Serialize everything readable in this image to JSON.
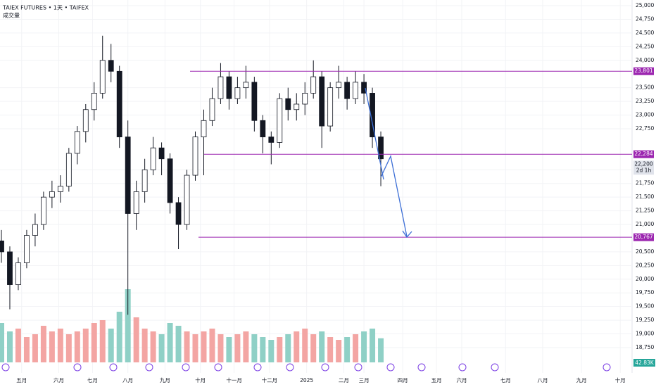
{
  "chart_data": {
    "type": "candlestick",
    "title": "TAIEX FUTURES • 1天 • TAIFEX",
    "subtitle": "成交量",
    "x": [
      0,
      5,
      10,
      15,
      20,
      25,
      30,
      35,
      40,
      45,
      50,
      55,
      60,
      65,
      70,
      75,
      80,
      85,
      90,
      95,
      100,
      105,
      110,
      115,
      120,
      125,
      130,
      135,
      140,
      145,
      150,
      155,
      160,
      165,
      170,
      175,
      180,
      185,
      190,
      195,
      200,
      205,
      210,
      215,
      220,
      225
    ],
    "open": [
      20700,
      20500,
      19900,
      20300,
      20800,
      21000,
      21500,
      21600,
      21700,
      22300,
      22700,
      23100,
      23400,
      24000,
      23800,
      22600,
      21200,
      21600,
      22000,
      22400,
      22200,
      21400,
      21000,
      21900,
      22600,
      22900,
      23300,
      23700,
      23300,
      23500,
      23600,
      22900,
      22600,
      22500,
      23300,
      23100,
      23200,
      23400,
      23700,
      22800,
      23500,
      23600,
      23300,
      23600,
      23400,
      22600
    ],
    "high": [
      20900,
      20600,
      20400,
      20900,
      21200,
      21600,
      21800,
      21900,
      22400,
      22800,
      23200,
      23600,
      24450,
      24300,
      23900,
      22900,
      21800,
      22200,
      22600,
      22500,
      22300,
      21500,
      22000,
      22700,
      23100,
      23500,
      23950,
      23800,
      23700,
      23900,
      23700,
      23000,
      22700,
      23400,
      23500,
      23400,
      23600,
      24000,
      23800,
      23600,
      23900,
      23700,
      23800,
      23750,
      23500,
      22700
    ],
    "low": [
      20300,
      19450,
      19800,
      20200,
      20600,
      20900,
      21300,
      21400,
      21600,
      22100,
      22500,
      22900,
      23300,
      23600,
      22400,
      19350,
      20900,
      21400,
      21900,
      21900,
      21200,
      20550,
      20900,
      21800,
      21900,
      22800,
      23200,
      23100,
      23200,
      23300,
      22700,
      22300,
      22100,
      22400,
      22900,
      22900,
      23000,
      23300,
      22400,
      22700,
      23300,
      23100,
      23200,
      23200,
      22400,
      21700
    ],
    "close": [
      20500,
      19900,
      20300,
      20800,
      21000,
      21500,
      21600,
      21700,
      22300,
      22700,
      23100,
      23400,
      24000,
      23800,
      22600,
      21200,
      21600,
      22000,
      22400,
      22200,
      21400,
      21000,
      21900,
      22600,
      22900,
      23300,
      23700,
      23300,
      23500,
      23600,
      22900,
      22600,
      22500,
      23300,
      23100,
      23200,
      23400,
      23700,
      22800,
      23500,
      23600,
      23300,
      23600,
      23400,
      22600,
      22200
    ],
    "volume": [
      70,
      55,
      60,
      45,
      50,
      65,
      55,
      60,
      50,
      55,
      60,
      70,
      75,
      60,
      90,
      130,
      80,
      60,
      55,
      50,
      70,
      65,
      55,
      50,
      55,
      60,
      50,
      45,
      50,
      55,
      50,
      45,
      40,
      45,
      50,
      55,
      60,
      50,
      55,
      45,
      40,
      45,
      50,
      55,
      60,
      42.83
    ],
    "volume_value_labels": [
      null,
      null,
      null,
      null,
      null,
      null,
      null,
      null,
      null,
      null,
      null,
      null,
      null,
      null,
      null,
      null,
      null,
      null,
      null,
      null,
      null,
      null,
      null,
      null,
      null,
      null,
      null,
      null,
      null,
      null,
      null,
      null,
      null,
      null,
      null,
      null,
      null,
      null,
      null,
      null,
      null,
      null,
      null,
      null,
      null,
      "42.83K"
    ],
    "volume_ylim": [
      0,
      150
    ],
    "xlim": [
      0,
      374
    ],
    "xticks": [
      {
        "value": 12,
        "label": "五月"
      },
      {
        "value": 34,
        "label": "六月"
      },
      {
        "value": 54,
        "label": "七月"
      },
      {
        "value": 75,
        "label": "八月"
      },
      {
        "value": 97,
        "label": "九月"
      },
      {
        "value": 118,
        "label": "十月"
      },
      {
        "value": 138,
        "label": "十一月"
      },
      {
        "value": 159,
        "label": "十二月"
      },
      {
        "value": 181,
        "label": "2025"
      },
      {
        "value": 203,
        "label": "二月"
      },
      {
        "value": 215,
        "label": "三月"
      },
      {
        "value": 238,
        "label": "四月"
      },
      {
        "value": 258,
        "label": "五月"
      },
      {
        "value": 273,
        "label": "六月"
      },
      {
        "value": 299,
        "label": "七月"
      },
      {
        "value": 321,
        "label": "八月"
      },
      {
        "value": 344,
        "label": "九月"
      },
      {
        "value": 367,
        "label": "十月"
      }
    ],
    "ylim": [
      18750,
      25000
    ],
    "yticks": [
      {
        "value": 18750,
        "label": "18,750"
      },
      {
        "value": 19000,
        "label": "19,000"
      },
      {
        "value": 19250,
        "label": "19,250"
      },
      {
        "value": 19500,
        "label": "19,500"
      },
      {
        "value": 19750,
        "label": "19,750"
      },
      {
        "value": 20000,
        "label": "20,000"
      },
      {
        "value": 20250,
        "label": "20,250"
      },
      {
        "value": 20500,
        "label": "20,500"
      },
      {
        "value": 21000,
        "label": "21,000"
      },
      {
        "value": 21250,
        "label": "21,250"
      },
      {
        "value": 21500,
        "label": "21,500"
      },
      {
        "value": 21750,
        "label": "21,750"
      },
      {
        "value": 22000,
        "label": "22,000"
      },
      {
        "value": 22750,
        "label": "22,750"
      },
      {
        "value": 23000,
        "label": "23,000"
      },
      {
        "value": 23250,
        "label": "23,250"
      },
      {
        "value": 23500,
        "label": "23,500"
      },
      {
        "value": 24000,
        "label": "24,000"
      },
      {
        "value": 24250,
        "label": "24,250"
      },
      {
        "value": 24500,
        "label": "24,500"
      },
      {
        "value": 24750,
        "label": "24,750"
      },
      {
        "value": 25000,
        "label": "25,000"
      }
    ],
    "price_lines": [
      {
        "value": 23801,
        "label": "23,801"
      },
      {
        "value": 22284,
        "label": "22,284"
      },
      {
        "value": 20767,
        "label": "20,767"
      }
    ],
    "last_price": {
      "value": 22200,
      "label": "22,200"
    },
    "countdown": "2d 1h",
    "grid": true,
    "colors": {
      "grid": "#f2f3f6",
      "candle": "#131722",
      "line": "#9c27b0",
      "volume_up": "#f3a5a3",
      "volume_down": "#8fd0c6"
    }
  }
}
